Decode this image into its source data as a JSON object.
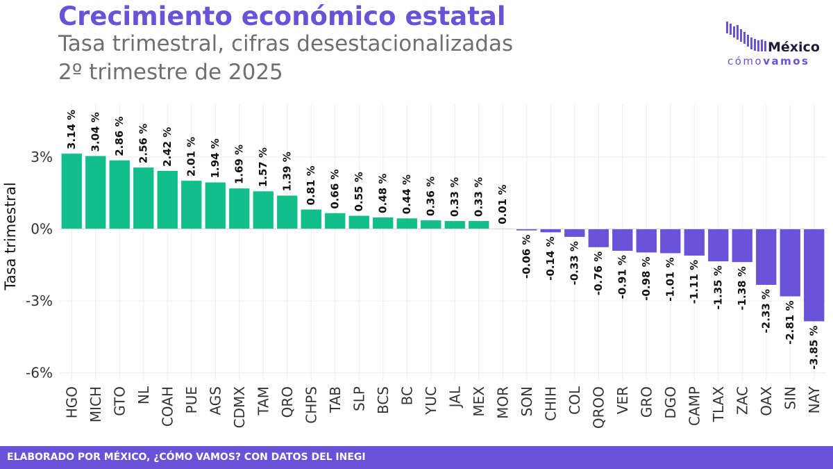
{
  "header": {
    "title": "Crecimiento económico estatal",
    "subtitle_line1": "Tasa trimestral, cifras desestacionalizadas",
    "subtitle_line2": "2º trimestre de 2025"
  },
  "logo": {
    "icon": "bar-chart-logo-icon",
    "name": "México",
    "tagline_light": "cómo",
    "tagline_bold": "vamos"
  },
  "footer": {
    "text": "ELABORADO POR MÉXICO, ¿CÓMO VAMOS? CON DATOS DEL INEGI"
  },
  "colors": {
    "positive": "#12bf8a",
    "negative": "#6a52d8",
    "title": "#6a52d8",
    "footer_bg": "#6a52d8"
  },
  "chart_data": {
    "type": "bar",
    "title": "Crecimiento económico estatal",
    "ylabel": "Tasa trimestral",
    "xlabel": "",
    "ylim": [
      -6.3,
      5.2
    ],
    "yticks": [
      -6,
      -3,
      0,
      3
    ],
    "ytick_labels": [
      "-6%",
      "-3%",
      "0%",
      "3%"
    ],
    "grid": true,
    "categories": [
      "HGO",
      "MICH",
      "GTO",
      "NL",
      "COAH",
      "PUE",
      "AGS",
      "CDMX",
      "TAM",
      "QRO",
      "CHPS",
      "TAB",
      "SLP",
      "BCS",
      "BC",
      "YUC",
      "JAL",
      "MEX",
      "MOR",
      "SON",
      "CHIH",
      "COL",
      "QROO",
      "VER",
      "GRO",
      "DGO",
      "CAMP",
      "TLAX",
      "ZAC",
      "OAX",
      "SIN",
      "NAY"
    ],
    "values": [
      3.14,
      3.04,
      2.86,
      2.56,
      2.42,
      2.01,
      1.94,
      1.69,
      1.57,
      1.39,
      0.81,
      0.66,
      0.55,
      0.48,
      0.44,
      0.36,
      0.33,
      0.33,
      0.01,
      -0.06,
      -0.14,
      -0.33,
      -0.76,
      -0.91,
      -0.98,
      -1.01,
      -1.11,
      -1.35,
      -1.38,
      -2.33,
      -2.81,
      -3.85
    ],
    "data_labels": [
      "3.14 %",
      "3.04 %",
      "2.86 %",
      "2.56 %",
      "2.42 %",
      "2.01 %",
      "1.94 %",
      "1.69 %",
      "1.57 %",
      "1.39 %",
      "0.81 %",
      "0.66 %",
      "0.55 %",
      "0.48 %",
      "0.44 %",
      "0.36 %",
      "0.33 %",
      "0.33 %",
      "0.01 %",
      "-0.06 %",
      "-0.14 %",
      "-0.33 %",
      "-0.76 %",
      "-0.91 %",
      "-0.98 %",
      "-1.01 %",
      "-1.11 %",
      "-1.35 %",
      "-1.38 %",
      "-2.33 %",
      "-2.81 %",
      "-3.85 %"
    ]
  }
}
